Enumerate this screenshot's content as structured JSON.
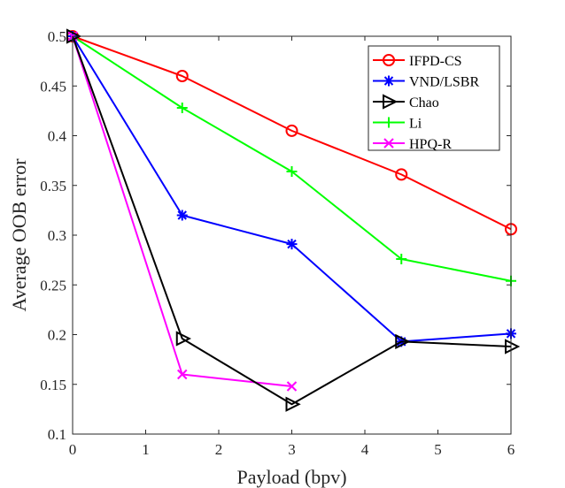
{
  "chart_data": {
    "type": "line",
    "title": "",
    "xlabel": "Payload (bpv)",
    "ylabel": "Average OOB error",
    "xlim": [
      0,
      6
    ],
    "ylim": [
      0.1,
      0.5
    ],
    "xticks": [
      0,
      1,
      2,
      3,
      4,
      5,
      6
    ],
    "xtick_labels": [
      "0",
      "1",
      "2",
      "3",
      "4",
      "5",
      "6"
    ],
    "yticks": [
      0.1,
      0.15,
      0.2,
      0.25,
      0.3,
      0.35,
      0.4,
      0.45,
      0.5
    ],
    "ytick_labels": [
      "0.1",
      "0.15",
      "0.2",
      "0.25",
      "0.3",
      "0.35",
      "0.4",
      "0.45",
      "0.5"
    ],
    "grid": false,
    "legend_position": "top-right",
    "series": [
      {
        "name": "IFPD-CS",
        "color": "#ff0000",
        "marker": "circle",
        "x": [
          0,
          1.5,
          3,
          4.5,
          6
        ],
        "values": [
          0.5,
          0.46,
          0.405,
          0.361,
          0.306
        ]
      },
      {
        "name": "VND/LSBR",
        "color": "#0000ff",
        "marker": "asterisk",
        "x": [
          0,
          1.5,
          3,
          4.5,
          6
        ],
        "values": [
          0.5,
          0.32,
          0.291,
          0.193,
          0.201
        ]
      },
      {
        "name": "Chao",
        "color": "#000000",
        "marker": "triangle-right",
        "x": [
          0,
          1.5,
          3,
          4.5,
          6
        ],
        "values": [
          0.5,
          0.196,
          0.13,
          0.193,
          0.188
        ]
      },
      {
        "name": "Li",
        "color": "#00ff00",
        "marker": "plus",
        "x": [
          0,
          1.5,
          3,
          4.5,
          6
        ],
        "values": [
          0.5,
          0.428,
          0.364,
          0.276,
          0.254
        ]
      },
      {
        "name": "HPQ-R",
        "color": "#ff00ff",
        "marker": "cross",
        "x": [
          0,
          1.5,
          3
        ],
        "values": [
          0.5,
          0.16,
          0.148
        ]
      }
    ]
  }
}
